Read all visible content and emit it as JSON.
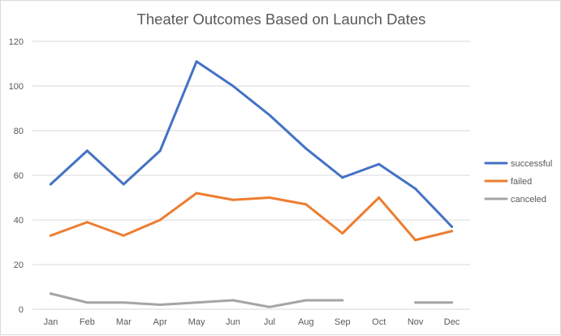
{
  "chart_data": {
    "type": "line",
    "title": "Theater Outcomes Based on Launch Dates",
    "xlabel": "",
    "ylabel": "",
    "categories": [
      "Jan",
      "Feb",
      "Mar",
      "Apr",
      "May",
      "Jun",
      "Jul",
      "Aug",
      "Sep",
      "Oct",
      "Nov",
      "Dec"
    ],
    "ylim": [
      0,
      120
    ],
    "yticks": [
      0,
      20,
      40,
      60,
      80,
      100,
      120
    ],
    "grid": true,
    "legend_position": "right",
    "series": [
      {
        "name": "successful",
        "color": "#4472c4",
        "values": [
          56,
          71,
          56,
          71,
          111,
          100,
          87,
          72,
          59,
          65,
          54,
          37
        ]
      },
      {
        "name": "failed",
        "color": "#ed7d31",
        "values": [
          33,
          39,
          33,
          40,
          52,
          49,
          50,
          47,
          34,
          50,
          31,
          35
        ]
      },
      {
        "name": "canceled",
        "color": "#a5a5a5",
        "values": [
          7,
          3,
          3,
          2,
          3,
          4,
          1,
          4,
          4,
          null,
          3,
          3
        ]
      }
    ]
  }
}
